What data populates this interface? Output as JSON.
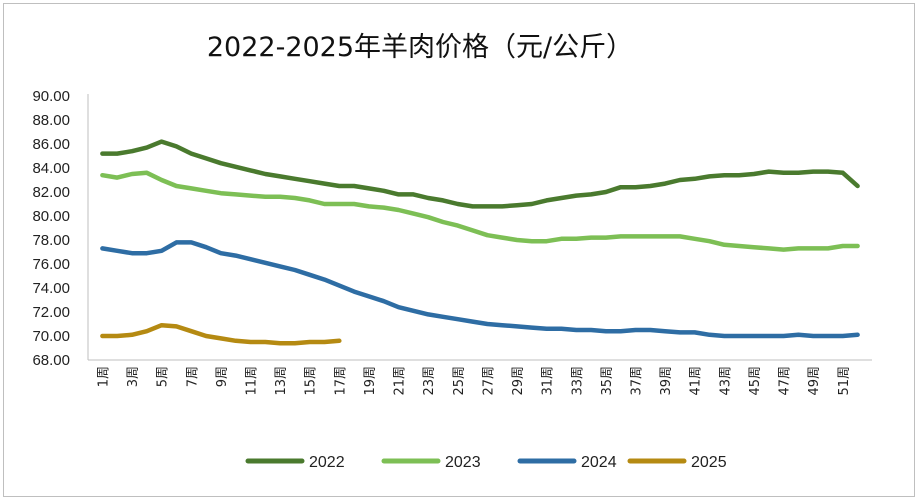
{
  "chart_data": {
    "type": "line",
    "title": "2022-2025年羊肉价格（元/公斤）",
    "xlabel": "",
    "ylabel": "",
    "ylim": [
      68,
      90
    ],
    "yticks": [
      "68.00",
      "70.00",
      "72.00",
      "74.00",
      "76.00",
      "78.00",
      "80.00",
      "82.00",
      "84.00",
      "86.00",
      "88.00",
      "90.00"
    ],
    "x_tick_labels": [
      "1周",
      "3周",
      "5周",
      "7周",
      "9周",
      "11周",
      "13周",
      "15周",
      "17周",
      "19周",
      "21周",
      "23周",
      "25周",
      "27周",
      "29周",
      "31周",
      "33周",
      "35周",
      "37周",
      "39周",
      "41周",
      "43周",
      "45周",
      "47周",
      "49周",
      "51周"
    ],
    "grid": false,
    "legend_position": "bottom",
    "series": [
      {
        "name": "2022",
        "color": "#4a7a2e",
        "values": [
          85.2,
          85.2,
          85.4,
          85.7,
          86.2,
          85.8,
          85.2,
          84.8,
          84.4,
          84.1,
          83.8,
          83.5,
          83.3,
          83.1,
          82.9,
          82.7,
          82.5,
          82.5,
          82.3,
          82.1,
          81.8,
          81.8,
          81.5,
          81.3,
          81.0,
          80.8,
          80.8,
          80.8,
          80.9,
          81.0,
          81.3,
          81.5,
          81.7,
          81.8,
          82.0,
          82.4,
          82.4,
          82.5,
          82.7,
          83.0,
          83.1,
          83.3,
          83.4,
          83.4,
          83.5,
          83.7,
          83.6,
          83.6,
          83.7,
          83.7,
          83.6,
          82.5
        ]
      },
      {
        "name": "2023",
        "color": "#7dbf55",
        "values": [
          83.4,
          83.2,
          83.5,
          83.6,
          83.0,
          82.5,
          82.3,
          82.1,
          81.9,
          81.8,
          81.7,
          81.6,
          81.6,
          81.5,
          81.3,
          81.0,
          81.0,
          81.0,
          80.8,
          80.7,
          80.5,
          80.2,
          79.9,
          79.5,
          79.2,
          78.8,
          78.4,
          78.2,
          78.0,
          77.9,
          77.9,
          78.1,
          78.1,
          78.2,
          78.2,
          78.3,
          78.3,
          78.3,
          78.3,
          78.3,
          78.1,
          77.9,
          77.6,
          77.5,
          77.4,
          77.3,
          77.2,
          77.3,
          77.3,
          77.3,
          77.5,
          77.5
        ]
      },
      {
        "name": "2024",
        "color": "#2e6da4",
        "values": [
          77.3,
          77.1,
          76.9,
          76.9,
          77.1,
          77.8,
          77.8,
          77.4,
          76.9,
          76.7,
          76.4,
          76.1,
          75.8,
          75.5,
          75.1,
          74.7,
          74.2,
          73.7,
          73.3,
          72.9,
          72.4,
          72.1,
          71.8,
          71.6,
          71.4,
          71.2,
          71.0,
          70.9,
          70.8,
          70.7,
          70.6,
          70.6,
          70.5,
          70.5,
          70.4,
          70.4,
          70.5,
          70.5,
          70.4,
          70.3,
          70.3,
          70.1,
          70.0,
          70.0,
          70.0,
          70.0,
          70.0,
          70.1,
          70.0,
          70.0,
          70.0,
          70.1
        ]
      },
      {
        "name": "2025",
        "color": "#b58a12",
        "values": [
          70.0,
          70.0,
          70.1,
          70.4,
          70.9,
          70.8,
          70.4,
          70.0,
          69.8,
          69.6,
          69.5,
          69.5,
          69.4,
          69.4,
          69.5,
          69.5,
          69.6
        ]
      }
    ]
  }
}
